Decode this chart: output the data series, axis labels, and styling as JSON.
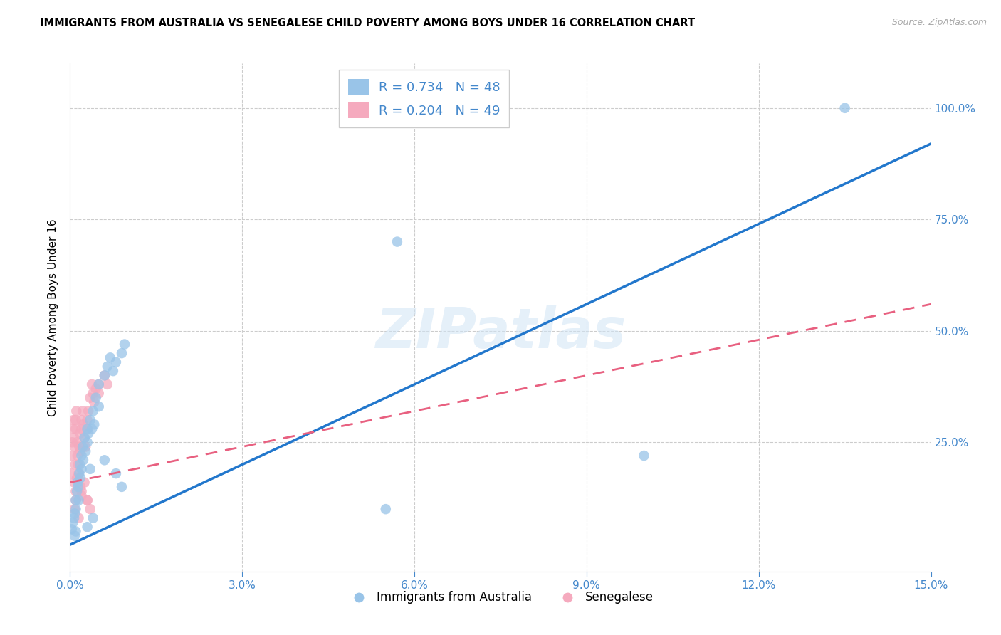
{
  "title": "IMMIGRANTS FROM AUSTRALIA VS SENEGALESE CHILD POVERTY AMONG BOYS UNDER 16 CORRELATION CHART",
  "source": "Source: ZipAtlas.com",
  "ylabel": "Child Poverty Among Boys Under 16",
  "legend1_label": "R = 0.734   N = 48",
  "legend2_label": "R = 0.204   N = 49",
  "legend_bottom1": "Immigrants from Australia",
  "legend_bottom2": "Senegalese",
  "blue_color": "#99c4e8",
  "pink_color": "#f5aabe",
  "blue_line_color": "#2277cc",
  "pink_line_color": "#e86080",
  "axis_color": "#4488cc",
  "grid_color": "#cccccc",
  "watermark": "ZIPatlas",
  "blue_scatter_x": [
    0.0003,
    0.0005,
    0.0007,
    0.0008,
    0.001,
    0.001,
    0.0012,
    0.0013,
    0.0014,
    0.0015,
    0.0016,
    0.0017,
    0.0018,
    0.002,
    0.002,
    0.0022,
    0.0023,
    0.0025,
    0.0027,
    0.003,
    0.003,
    0.0032,
    0.0035,
    0.0038,
    0.004,
    0.0042,
    0.0045,
    0.005,
    0.005,
    0.006,
    0.0065,
    0.007,
    0.0075,
    0.008,
    0.009,
    0.0095,
    0.055,
    0.057,
    0.1,
    0.135,
    0.0008,
    0.001,
    0.003,
    0.0035,
    0.004,
    0.006,
    0.008,
    0.009
  ],
  "blue_scatter_y": [
    0.055,
    0.07,
    0.08,
    0.09,
    0.1,
    0.12,
    0.14,
    0.16,
    0.15,
    0.12,
    0.18,
    0.2,
    0.17,
    0.22,
    0.19,
    0.24,
    0.21,
    0.26,
    0.23,
    0.28,
    0.25,
    0.27,
    0.3,
    0.28,
    0.32,
    0.29,
    0.35,
    0.33,
    0.38,
    0.4,
    0.42,
    0.44,
    0.41,
    0.43,
    0.45,
    0.47,
    0.1,
    0.7,
    0.22,
    1.0,
    0.04,
    0.05,
    0.06,
    0.19,
    0.08,
    0.21,
    0.18,
    0.15
  ],
  "pink_scatter_x": [
    0.0002,
    0.0003,
    0.0004,
    0.0005,
    0.0006,
    0.0007,
    0.0008,
    0.0009,
    0.001,
    0.001,
    0.0011,
    0.0012,
    0.0013,
    0.0014,
    0.0015,
    0.0016,
    0.0017,
    0.0018,
    0.002,
    0.002,
    0.0022,
    0.0023,
    0.0025,
    0.0027,
    0.003,
    0.003,
    0.0032,
    0.0035,
    0.0038,
    0.004,
    0.0042,
    0.0045,
    0.005,
    0.005,
    0.006,
    0.0065,
    0.0008,
    0.001,
    0.0015,
    0.002,
    0.0025,
    0.003,
    0.0035,
    0.0007,
    0.001,
    0.0012,
    0.0018,
    0.002,
    0.003
  ],
  "pink_scatter_y": [
    0.18,
    0.22,
    0.25,
    0.28,
    0.3,
    0.26,
    0.24,
    0.2,
    0.28,
    0.3,
    0.32,
    0.25,
    0.22,
    0.2,
    0.18,
    0.24,
    0.27,
    0.23,
    0.3,
    0.28,
    0.32,
    0.29,
    0.26,
    0.24,
    0.3,
    0.28,
    0.32,
    0.35,
    0.38,
    0.36,
    0.34,
    0.37,
    0.38,
    0.36,
    0.4,
    0.38,
    0.1,
    0.12,
    0.08,
    0.14,
    0.16,
    0.12,
    0.1,
    0.16,
    0.14,
    0.17,
    0.15,
    0.13,
    0.12
  ],
  "blue_line_x0": 0.0,
  "blue_line_x1": 0.15,
  "blue_line_y0": 0.02,
  "blue_line_y1": 0.92,
  "pink_line_x0": 0.0,
  "pink_line_x1": 0.15,
  "pink_line_y0": 0.16,
  "pink_line_y1": 0.56,
  "xlim_min": 0.0,
  "xlim_max": 0.15,
  "ylim_min": -0.04,
  "ylim_max": 1.1,
  "xticks": [
    0.0,
    0.03,
    0.06,
    0.09,
    0.12,
    0.15
  ],
  "xticklabels": [
    "0.0%",
    "3.0%",
    "6.0%",
    "9.0%",
    "12.0%",
    "15.0%"
  ],
  "yticks": [
    0.0,
    0.25,
    0.5,
    0.75,
    1.0
  ],
  "yticklabels": [
    "",
    "25.0%",
    "50.0%",
    "75.0%",
    "100.0%"
  ],
  "grid_yticks": [
    0.25,
    0.5,
    0.75,
    1.0
  ],
  "grid_xticks": [
    0.03,
    0.06,
    0.09,
    0.12
  ]
}
